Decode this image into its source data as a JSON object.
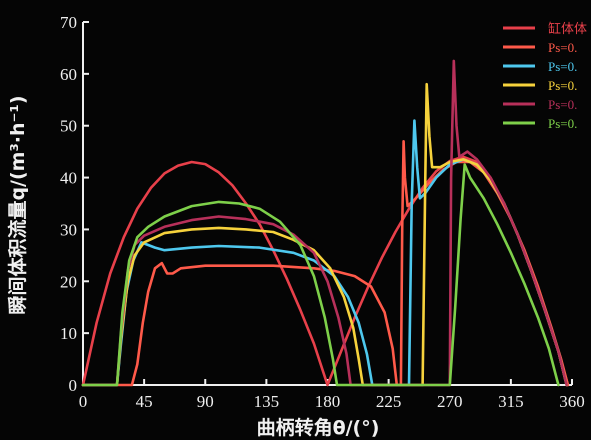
{
  "chart_data": {
    "type": "line",
    "xlabel": "曲柄转角θ/(°)",
    "ylabel": "瞬间体积流量q/(m³·h⁻¹)",
    "xticks": [
      0,
      45,
      90,
      135,
      180,
      225,
      270,
      315,
      360
    ],
    "yticks": [
      0,
      10,
      20,
      30,
      40,
      50,
      60,
      70
    ],
    "xlim": [
      0,
      360
    ],
    "ylim": [
      0,
      70
    ],
    "grid": false,
    "legend_position": "top-right",
    "series": [
      {
        "name": "缸体体",
        "color": "#e8404a",
        "points": [
          [
            0,
            0
          ],
          [
            10,
            12
          ],
          [
            20,
            21.5
          ],
          [
            30,
            28.5
          ],
          [
            40,
            34
          ],
          [
            50,
            38
          ],
          [
            60,
            40.8
          ],
          [
            70,
            42.3
          ],
          [
            80,
            43
          ],
          [
            90,
            42.6
          ],
          [
            100,
            41
          ],
          [
            110,
            38.5
          ],
          [
            120,
            35
          ],
          [
            130,
            31
          ],
          [
            140,
            26
          ],
          [
            150,
            20.5
          ],
          [
            160,
            14.5
          ],
          [
            170,
            8
          ],
          [
            180,
            0
          ],
          [
            190,
            6.5
          ],
          [
            200,
            13
          ],
          [
            210,
            19
          ],
          [
            220,
            24.5
          ],
          [
            230,
            29.5
          ],
          [
            240,
            34
          ],
          [
            250,
            38
          ],
          [
            260,
            41.2
          ],
          [
            270,
            43.2
          ],
          [
            280,
            44
          ],
          [
            290,
            43
          ],
          [
            300,
            40
          ],
          [
            310,
            35
          ],
          [
            320,
            29
          ],
          [
            330,
            22
          ],
          [
            340,
            14.5
          ],
          [
            350,
            6.5
          ],
          [
            357,
            0
          ]
        ]
      },
      {
        "name": "Ps=0.",
        "color": "#ff5a4a",
        "points": [
          [
            0,
            0
          ],
          [
            36,
            0
          ],
          [
            40,
            4
          ],
          [
            44,
            12
          ],
          [
            48,
            18
          ],
          [
            53,
            22.5
          ],
          [
            58,
            23.5
          ],
          [
            62,
            21.5
          ],
          [
            66,
            21.5
          ],
          [
            72,
            22.5
          ],
          [
            90,
            23
          ],
          [
            140,
            23
          ],
          [
            170,
            22.5
          ],
          [
            185,
            22
          ],
          [
            200,
            21
          ],
          [
            212,
            19
          ],
          [
            222,
            14
          ],
          [
            228,
            7
          ],
          [
            231,
            0
          ],
          [
            234,
            0
          ],
          [
            235,
            30
          ],
          [
            236,
            47
          ],
          [
            237,
            40
          ],
          [
            239,
            34.5
          ],
          [
            245,
            36
          ],
          [
            255,
            39
          ],
          [
            265,
            41.5
          ],
          [
            275,
            43
          ],
          [
            285,
            43
          ],
          [
            295,
            41
          ],
          [
            305,
            37
          ],
          [
            315,
            32
          ],
          [
            325,
            26
          ],
          [
            335,
            19
          ],
          [
            345,
            11
          ],
          [
            352,
            5
          ],
          [
            357,
            0
          ]
        ]
      },
      {
        "name": "Ps=0.",
        "color": "#4ec8ee",
        "points": [
          [
            0,
            0
          ],
          [
            25,
            0
          ],
          [
            28,
            8
          ],
          [
            32,
            18
          ],
          [
            37,
            24
          ],
          [
            43,
            27.5
          ],
          [
            48,
            27
          ],
          [
            53,
            26.5
          ],
          [
            60,
            26
          ],
          [
            80,
            26.5
          ],
          [
            100,
            26.8
          ],
          [
            130,
            26.5
          ],
          [
            155,
            25.5
          ],
          [
            170,
            24
          ],
          [
            185,
            21
          ],
          [
            195,
            17
          ],
          [
            203,
            12
          ],
          [
            209,
            6
          ],
          [
            213,
            0
          ],
          [
            240,
            0
          ],
          [
            242,
            35
          ],
          [
            244,
            51
          ],
          [
            246,
            42
          ],
          [
            248,
            36
          ],
          [
            252,
            37
          ],
          [
            260,
            40
          ],
          [
            270,
            42.5
          ],
          [
            280,
            43.5
          ],
          [
            290,
            42.5
          ],
          [
            300,
            39.5
          ],
          [
            310,
            35
          ],
          [
            320,
            29
          ],
          [
            330,
            22
          ],
          [
            340,
            14.5
          ],
          [
            350,
            6.5
          ],
          [
            356,
            0
          ]
        ]
      },
      {
        "name": "Ps=0.",
        "color": "#f6d23c",
        "points": [
          [
            0,
            0
          ],
          [
            25,
            0
          ],
          [
            28,
            9
          ],
          [
            33,
            20
          ],
          [
            38,
            25
          ],
          [
            45,
            27.5
          ],
          [
            60,
            29.3
          ],
          [
            80,
            30
          ],
          [
            100,
            30.3
          ],
          [
            120,
            30
          ],
          [
            140,
            29.5
          ],
          [
            155,
            28
          ],
          [
            170,
            26
          ],
          [
            182,
            22.5
          ],
          [
            192,
            17
          ],
          [
            199,
            11
          ],
          [
            203,
            5
          ],
          [
            206,
            0
          ],
          [
            250,
            0
          ],
          [
            252,
            40
          ],
          [
            253,
            58
          ],
          [
            255,
            48
          ],
          [
            257,
            42
          ],
          [
            263,
            42
          ],
          [
            270,
            43
          ],
          [
            280,
            43.5
          ],
          [
            290,
            42.5
          ],
          [
            300,
            39.5
          ],
          [
            310,
            35
          ],
          [
            320,
            29
          ],
          [
            330,
            22
          ],
          [
            340,
            14.5
          ],
          [
            350,
            6.5
          ],
          [
            356,
            0
          ]
        ]
      },
      {
        "name": "Ps=0.",
        "color": "#b8305a",
        "points": [
          [
            0,
            0
          ],
          [
            25,
            0
          ],
          [
            28,
            10
          ],
          [
            33,
            22
          ],
          [
            38,
            27
          ],
          [
            45,
            28.8
          ],
          [
            60,
            30.5
          ],
          [
            80,
            31.8
          ],
          [
            100,
            32.5
          ],
          [
            120,
            32
          ],
          [
            140,
            31
          ],
          [
            155,
            29
          ],
          [
            170,
            25.5
          ],
          [
            180,
            20
          ],
          [
            188,
            13
          ],
          [
            194,
            6
          ],
          [
            197,
            0
          ],
          [
            270,
            0
          ],
          [
            271,
            40
          ],
          [
            273,
            62.5
          ],
          [
            275,
            50
          ],
          [
            277,
            44
          ],
          [
            283,
            45
          ],
          [
            290,
            43.5
          ],
          [
            300,
            40
          ],
          [
            310,
            35
          ],
          [
            320,
            29
          ],
          [
            330,
            22
          ],
          [
            340,
            14.5
          ],
          [
            350,
            6.5
          ],
          [
            356,
            0
          ]
        ]
      },
      {
        "name": "Ps=0.",
        "color": "#7ed04a",
        "points": [
          [
            0,
            0
          ],
          [
            25,
            0
          ],
          [
            29,
            14
          ],
          [
            34,
            24
          ],
          [
            40,
            28.5
          ],
          [
            48,
            30.5
          ],
          [
            60,
            32.5
          ],
          [
            80,
            34.5
          ],
          [
            100,
            35.3
          ],
          [
            115,
            35
          ],
          [
            130,
            34
          ],
          [
            145,
            31.5
          ],
          [
            160,
            27
          ],
          [
            170,
            21
          ],
          [
            178,
            13
          ],
          [
            184,
            5
          ],
          [
            187,
            0
          ],
          [
            270,
            0
          ],
          [
            274,
            15
          ],
          [
            278,
            32
          ],
          [
            281,
            42.5
          ],
          [
            285,
            40
          ],
          [
            295,
            36
          ],
          [
            305,
            31
          ],
          [
            315,
            25.5
          ],
          [
            325,
            19.5
          ],
          [
            335,
            13
          ],
          [
            343,
            7
          ],
          [
            350,
            0
          ]
        ]
      }
    ]
  }
}
